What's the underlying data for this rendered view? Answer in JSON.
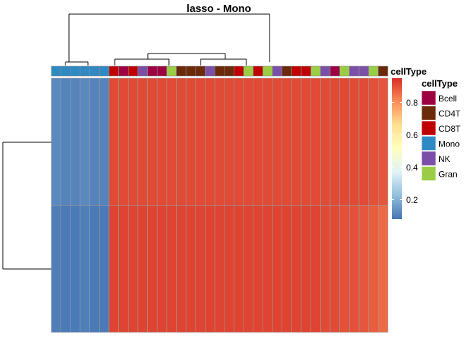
{
  "chart_data": {
    "type": "heatmap",
    "title": "lasso - Mono",
    "annotation_label": "cellType",
    "column_cell_types": [
      "Mono",
      "Mono",
      "Mono",
      "Mono",
      "Mono",
      "Mono",
      "CD8T",
      "Bcell",
      "CD8T",
      "NK",
      "Bcell",
      "Bcell",
      "Gran",
      "CD4T",
      "CD4T",
      "CD4T",
      "NK",
      "CD4T",
      "CD4T",
      "CD8T",
      "Gran",
      "CD8T",
      "Gran",
      "NK",
      "CD4T",
      "CD8T",
      "CD8T",
      "Gran",
      "NK",
      "Bcell",
      "Gran",
      "NK",
      "NK",
      "Gran",
      "CD4T"
    ],
    "row_values": [
      [
        0.12,
        0.11,
        0.11,
        0.12,
        0.11,
        0.11,
        0.91,
        0.91,
        0.91,
        0.91,
        0.91,
        0.91,
        0.91,
        0.91,
        0.91,
        0.91,
        0.91,
        0.91,
        0.91,
        0.91,
        0.91,
        0.91,
        0.91,
        0.91,
        0.91,
        0.91,
        0.91,
        0.91,
        0.91,
        0.91,
        0.91,
        0.91,
        0.91,
        0.9,
        0.89
      ],
      [
        0.1,
        0.09,
        0.09,
        0.1,
        0.09,
        0.09,
        0.92,
        0.92,
        0.92,
        0.92,
        0.92,
        0.92,
        0.92,
        0.92,
        0.92,
        0.92,
        0.92,
        0.92,
        0.92,
        0.92,
        0.92,
        0.92,
        0.92,
        0.92,
        0.92,
        0.92,
        0.92,
        0.92,
        0.91,
        0.91,
        0.9,
        0.9,
        0.89,
        0.88,
        0.86
      ]
    ],
    "color_scale": {
      "min": 0.08,
      "max": 0.95,
      "ticks": [
        0.2,
        0.4,
        0.6,
        0.8
      ],
      "tick_labels": [
        "0.2",
        "0.4",
        "0.6",
        "0.8"
      ],
      "stops": [
        "#4575b4",
        "#91bfdb",
        "#e0f3f8",
        "#ffffbf",
        "#fee090",
        "#fc8d59",
        "#d73027"
      ]
    },
    "legend": {
      "title": "cellType",
      "entries": [
        {
          "label": "Bcell",
          "color": "#9e0142"
        },
        {
          "label": "CD4T",
          "color": "#6b2a0a"
        },
        {
          "label": "CD8T",
          "color": "#c00000"
        },
        {
          "label": "Mono",
          "color": "#2f8ac4"
        },
        {
          "label": "NK",
          "color": "#7b4fa8"
        },
        {
          "label": "Gran",
          "color": "#9acd45"
        }
      ]
    }
  }
}
